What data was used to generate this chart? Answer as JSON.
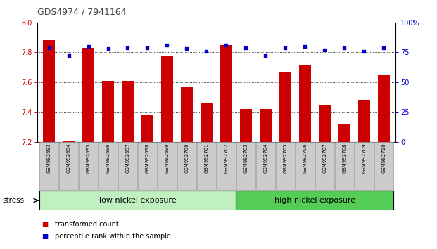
{
  "title": "GDS4974 / 7941164",
  "samples": [
    "GSM992693",
    "GSM992694",
    "GSM992695",
    "GSM992696",
    "GSM992697",
    "GSM992698",
    "GSM992699",
    "GSM992700",
    "GSM992701",
    "GSM992702",
    "GSM992703",
    "GSM992704",
    "GSM992705",
    "GSM992706",
    "GSM992707",
    "GSM992708",
    "GSM992709",
    "GSM992710"
  ],
  "transformed_counts": [
    7.88,
    7.21,
    7.83,
    7.61,
    7.61,
    7.38,
    7.78,
    7.57,
    7.46,
    7.85,
    7.42,
    7.42,
    7.67,
    7.71,
    7.45,
    7.32,
    7.48,
    7.65
  ],
  "percentile_ranks": [
    79,
    72,
    80,
    78,
    79,
    79,
    81,
    78,
    76,
    81,
    79,
    72,
    79,
    80,
    77,
    79,
    76,
    79
  ],
  "group_labels": [
    "low nickel exposure",
    "high nickel exposure"
  ],
  "group_counts": [
    10,
    8
  ],
  "group_colors": [
    "#c0f0c0",
    "#55cc55"
  ],
  "ylim_left": [
    7.2,
    8.0
  ],
  "ylim_right": [
    0,
    100
  ],
  "yticks_left": [
    7.2,
    7.4,
    7.6,
    7.8,
    8.0
  ],
  "yticks_right": [
    0,
    25,
    50,
    75,
    100
  ],
  "ytick_right_labels": [
    "0",
    "25",
    "50",
    "75",
    "100%"
  ],
  "bar_color": "#cc0000",
  "dot_color": "#0000cc",
  "bar_width": 0.6,
  "bg_color": "#ffffff",
  "legend_items": [
    "transformed count",
    "percentile rank within the sample"
  ],
  "stress_label": "stress",
  "left_tick_color": "#cc0000",
  "right_tick_color": "#0000cc",
  "title_color": "#444444",
  "xlabel_bg": "#cccccc",
  "xlabel_border": "#999999"
}
